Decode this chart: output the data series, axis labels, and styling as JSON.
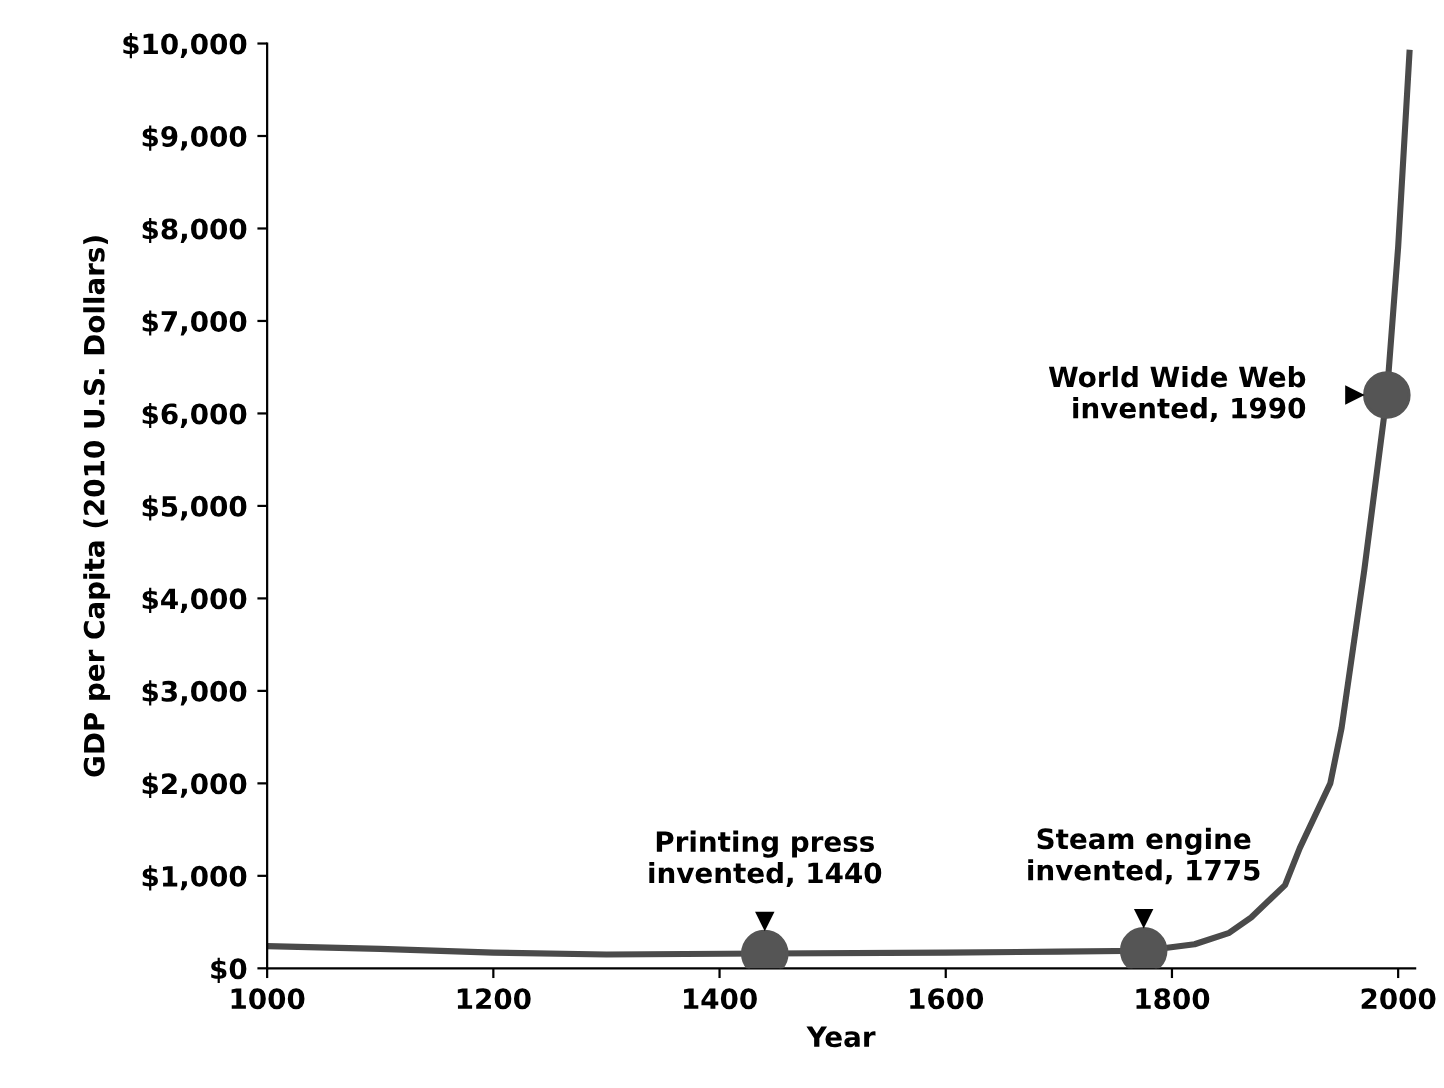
{
  "chart_data": {
    "type": "line",
    "xlabel": "Year",
    "ylabel": "GDP per Capita (2010 U.S. Dollars)",
    "series": [
      {
        "type": "line",
        "color": "#4a4a4a",
        "marker": "none",
        "x": [
          1000,
          1100,
          1200,
          1300,
          1440,
          1600,
          1700,
          1775,
          1820,
          1850,
          1870,
          1900,
          1913,
          1940,
          1950,
          1970,
          1990,
          2000,
          2010
        ],
        "values": [
          240,
          210,
          170,
          150,
          160,
          170,
          180,
          190,
          260,
          380,
          550,
          900,
          1300,
          2000,
          2600,
          4300,
          6200,
          7800,
          9900
        ]
      },
      {
        "type": "scatter",
        "color": "#555555",
        "marker": "circle",
        "x": [
          1440,
          1775,
          1990
        ],
        "values": [
          160,
          190,
          6200
        ]
      }
    ],
    "annotations": [
      {
        "text": "Printing press\ninvented, 1440",
        "x": 1440,
        "y": 160
      },
      {
        "text": "Steam engine\ninvented, 1775",
        "x": 1775,
        "y": 190
      },
      {
        "text": "World Wide Web\ninvented, 1990",
        "x": 1990,
        "y": 6200
      }
    ],
    "xlim": [
      1000,
      2015
    ],
    "ylim": [
      0,
      10000
    ],
    "xticks": [
      1000,
      1200,
      1400,
      1600,
      1800,
      2000
    ],
    "yticks": [
      {
        "value": 0,
        "label": "$0"
      },
      {
        "value": 1000,
        "label": "$1,000"
      },
      {
        "value": 2000,
        "label": "$2,000"
      },
      {
        "value": 3000,
        "label": "$3,000"
      },
      {
        "value": 4000,
        "label": "$4,000"
      },
      {
        "value": 5000,
        "label": "$5,000"
      },
      {
        "value": 6000,
        "label": "$6,000"
      },
      {
        "value": 7000,
        "label": "$7,000"
      },
      {
        "value": 8000,
        "label": "$8,000"
      },
      {
        "value": 9000,
        "label": "$9,000"
      },
      {
        "value": 10000,
        "label": "$10,000"
      }
    ],
    "grid": false,
    "legend": false
  }
}
